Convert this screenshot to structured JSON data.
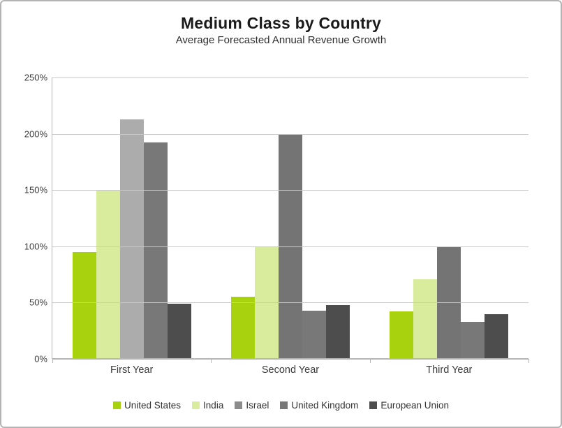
{
  "header": {
    "title": "Medium Class by Country",
    "subtitle": "Average Forecasted Annual Revenue Growth"
  },
  "chart_data": {
    "type": "bar",
    "title": "Medium Class by Country",
    "subtitle": "Average Forecasted Annual Revenue Growth",
    "categories": [
      "First Year",
      "Second Year",
      "Third Year"
    ],
    "series": [
      {
        "name": "United States",
        "color": "#a8d20d",
        "values": [
          95,
          55,
          42
        ]
      },
      {
        "name": "India",
        "color": "#d9eb9d",
        "values": [
          150,
          100,
          71
        ]
      },
      {
        "name": "Israel",
        "color": "#8c8c8c",
        "values": [
          213,
          200,
          100
        ],
        "colors": [
          "#acacac",
          "#747474",
          "#747474"
        ]
      },
      {
        "name": "United Kingdom",
        "color": "#787878",
        "values": [
          192,
          43,
          33
        ]
      },
      {
        "name": "European Union",
        "color": "#4d4d4d",
        "values": [
          49,
          48,
          40
        ]
      }
    ],
    "y_axis": {
      "min": 0,
      "max": 250,
      "step": 50,
      "unit": "%",
      "tick_labels": [
        "0%",
        "50%",
        "100%",
        "150%",
        "200%",
        "250%"
      ]
    },
    "grid": true,
    "legend_position": "bottom",
    "colors": {
      "card_border": "#b3b3b3",
      "gridline": "#c9c9c9",
      "axis": "#b5b5b5",
      "title_text": "#1a1a1a",
      "tick_text": "#3c3c3c"
    }
  }
}
